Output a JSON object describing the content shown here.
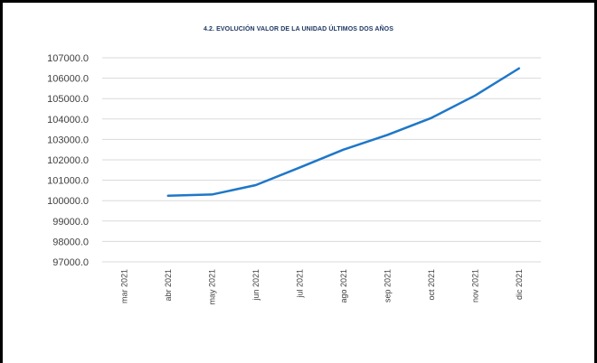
{
  "chart_data": {
    "type": "line",
    "title": "4.2. EVOLUCIÓN VALOR DE LA UNIDAD ÚLTIMOS DOS AÑOS",
    "xlabel": "",
    "ylabel": "",
    "categories": [
      "mar 2021",
      "abr 2021",
      "may 2021",
      "jun 2021",
      "jul 2021",
      "ago 2021",
      "sep 2021",
      "oct 2021",
      "nov 2021",
      "dic 2021"
    ],
    "series": [
      {
        "values": [
          null,
          100240,
          100300,
          100760,
          101620,
          102500,
          103220,
          104050,
          105150,
          106480
        ]
      }
    ],
    "ylim": [
      97000,
      107000
    ],
    "yticks": [
      "97000.0",
      "98000.0",
      "99000.0",
      "100000.0",
      "101000.0",
      "102000.0",
      "103000.0",
      "104000.0",
      "105000.0",
      "106000.0",
      "107000.0"
    ],
    "grid": true,
    "legend": "none",
    "colors": {
      "line": "#1f77c8",
      "grid": "#d9d9d9",
      "frame": "#000000",
      "title": "#1f3864"
    }
  }
}
